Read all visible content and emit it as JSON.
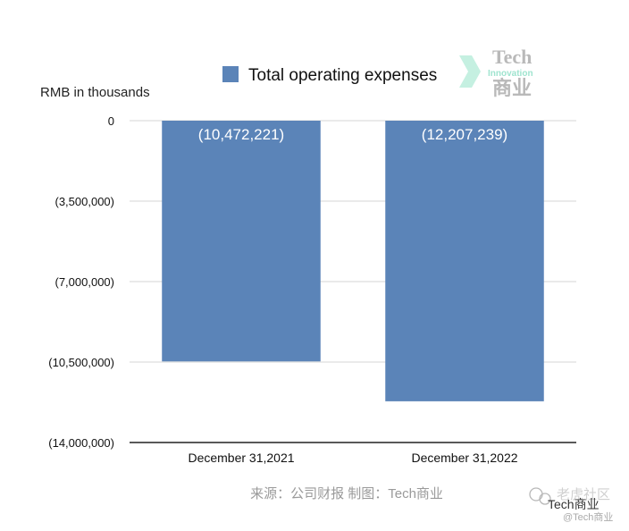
{
  "chart_data": {
    "type": "bar",
    "title": "",
    "ylabel": "RMB in thousands",
    "xlabel": "",
    "categories": [
      "December 31,2021",
      "December 31,2022"
    ],
    "series": [
      {
        "name": "Total operating expenses",
        "values": [
          -10472221,
          -12207239
        ],
        "color": "#5b84b8"
      }
    ],
    "data_labels": [
      "(10,472,221)",
      "(12,207,239)"
    ],
    "ylim": [
      -14000000,
      0
    ],
    "yticks": [
      0,
      -3500000,
      -7000000,
      -10500000,
      -14000000
    ],
    "ytick_labels": [
      "0",
      "(3,500,000)",
      "(7,000,000)",
      "(10,500,000)",
      "(14,000,000)"
    ],
    "grid": true,
    "legend": "top-center"
  },
  "logo": {
    "line1": "Tech",
    "line2": "Innovation",
    "line3": "商业"
  },
  "source_text": "来源：公司财报 制图：Tech商业",
  "watermark": {
    "channel": "Tech商业",
    "community": "老虎社区",
    "handle": "@Tech商业"
  }
}
